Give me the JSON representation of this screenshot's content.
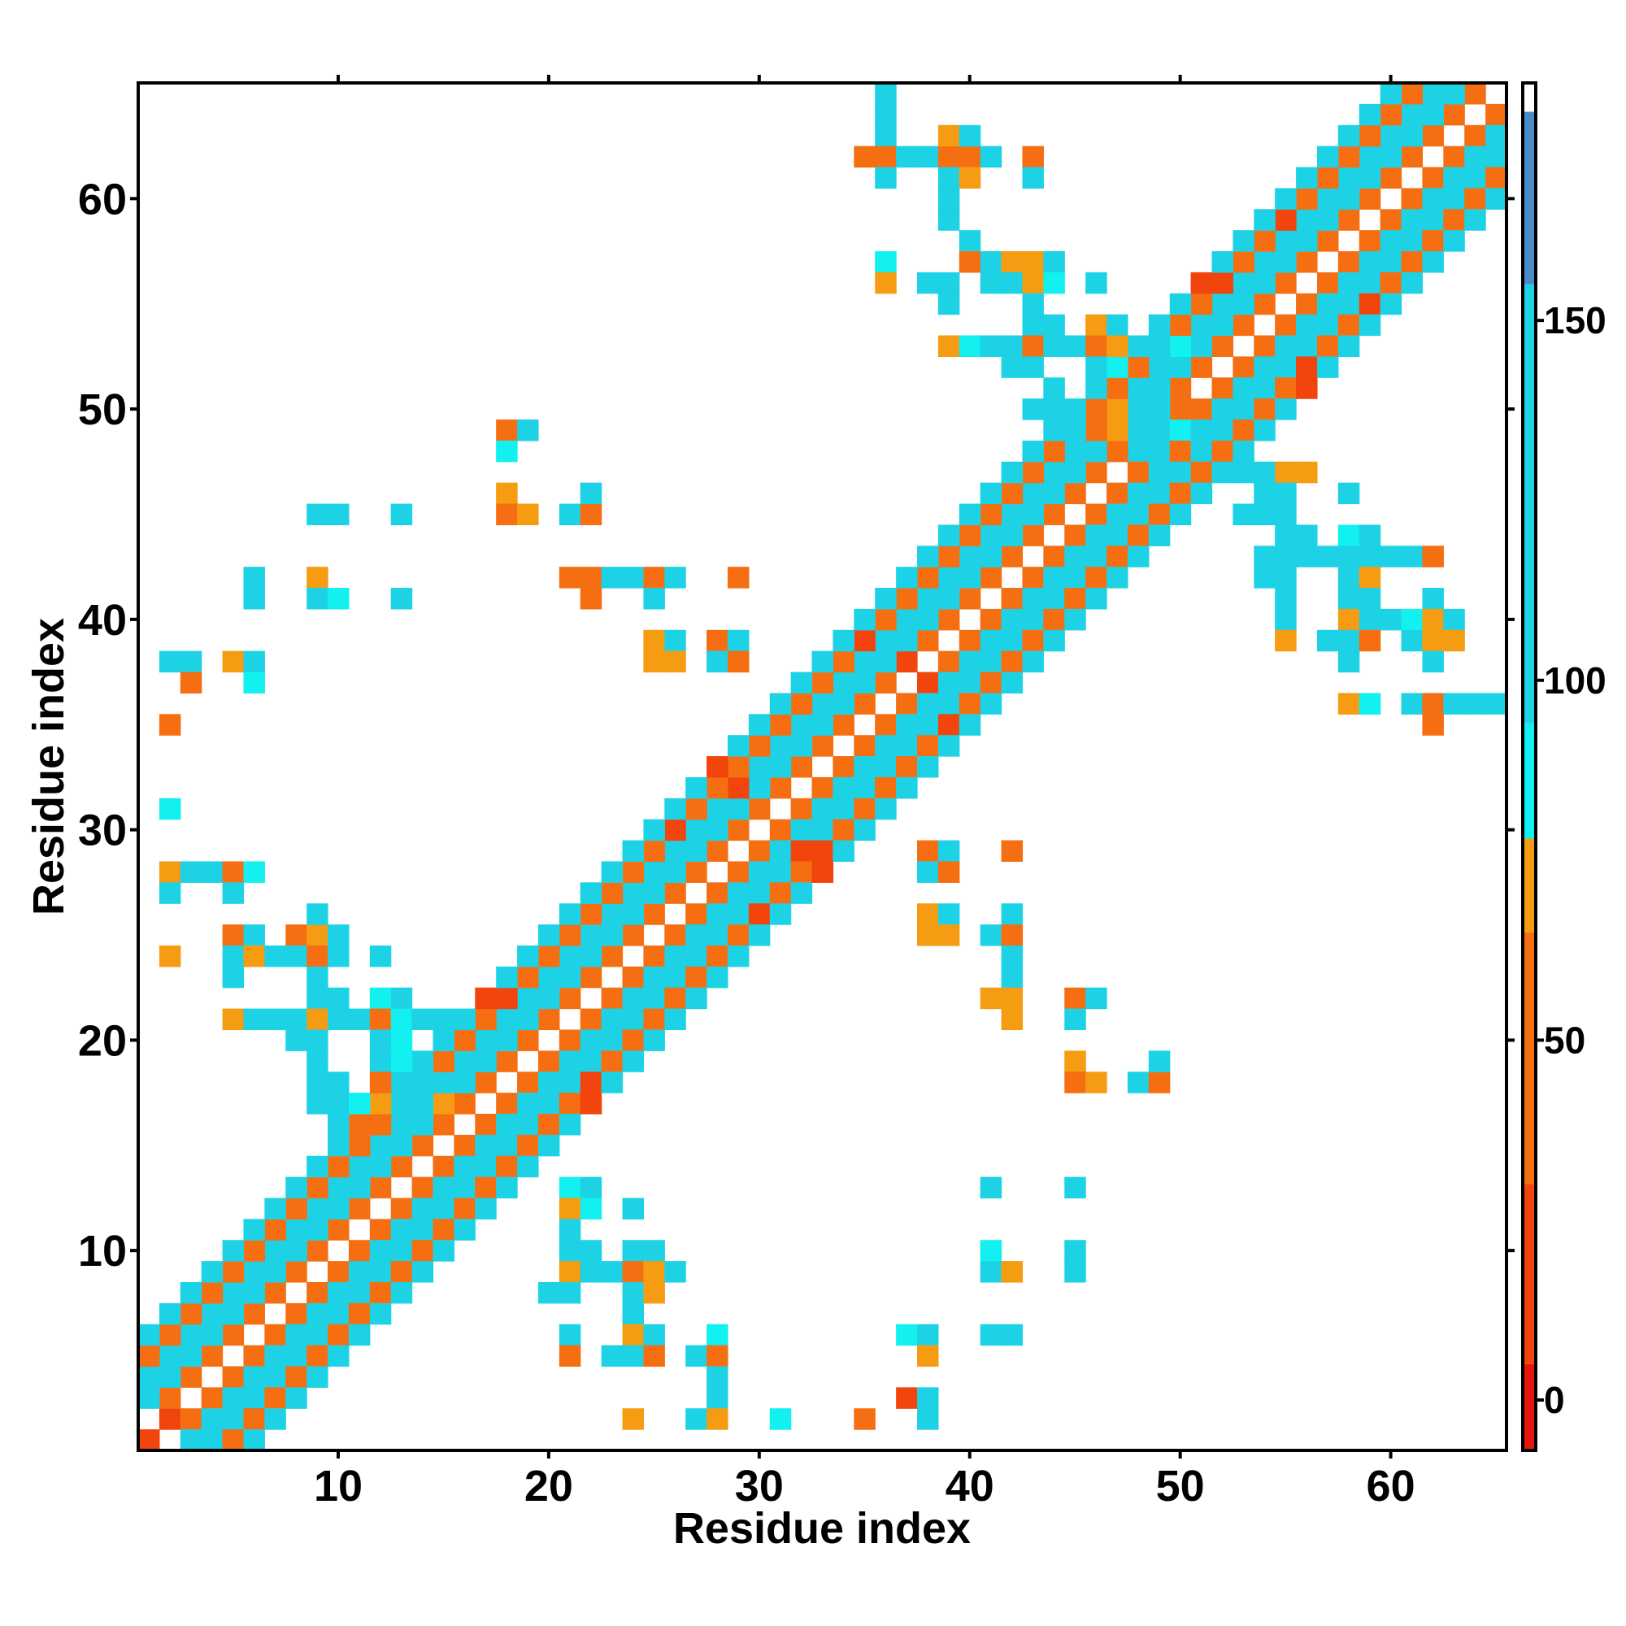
{
  "chart_data": {
    "type": "heatmap",
    "xlabel": "Residue index",
    "ylabel": "Residue index",
    "xlim": [
      0.5,
      65.5
    ],
    "ylim": [
      0.5,
      65.5
    ],
    "x_ticks": [
      10,
      20,
      30,
      40,
      50,
      60
    ],
    "y_ticks": [
      10,
      20,
      30,
      40,
      50,
      60
    ],
    "grid": false,
    "colorbar": {
      "range": [
        -7,
        183
      ],
      "ticks": [
        0,
        50,
        100,
        150
      ],
      "segments": [
        {
          "from": -7,
          "to": 5,
          "color": "#e8150d"
        },
        {
          "from": 5,
          "to": 30,
          "color": "#f2440d"
        },
        {
          "from": 30,
          "to": 65,
          "color": "#f56e12"
        },
        {
          "from": 65,
          "to": 78,
          "color": "#f59c12"
        },
        {
          "from": 78,
          "to": 94,
          "color": "#12f0f0"
        },
        {
          "from": 94,
          "to": 155,
          "color": "#1ed2e6"
        },
        {
          "from": 155,
          "to": 179,
          "color": "#4a8cc8"
        },
        {
          "from": 179,
          "to": 183,
          "color": "#ffffff"
        }
      ]
    },
    "note_values": "cell values in colorbar units",
    "diagonal_bands": [
      {
        "offset": 0,
        "value": 180
      },
      {
        "offset": 1,
        "value": 40
      },
      {
        "offset": 2,
        "value": 100
      },
      {
        "offset": 3,
        "value": 120
      },
      {
        "offset": 4,
        "value": 45
      },
      {
        "offset": 5,
        "value": 110
      }
    ],
    "cells": [
      [
        1,
        1,
        5
      ],
      [
        2,
        2,
        5
      ],
      [
        1,
        2,
        180
      ],
      [
        2,
        1,
        180
      ],
      [
        17,
        22,
        8
      ],
      [
        18,
        22,
        8
      ],
      [
        22,
        17,
        8
      ],
      [
        22,
        18,
        8
      ],
      [
        26,
        30,
        12
      ],
      [
        30,
        26,
        10
      ],
      [
        28,
        33,
        8
      ],
      [
        33,
        28,
        8
      ],
      [
        32,
        29,
        10
      ],
      [
        33,
        29,
        10
      ],
      [
        29,
        32,
        12
      ],
      [
        38,
        37,
        12
      ],
      [
        37,
        38,
        8
      ],
      [
        35,
        39,
        10
      ],
      [
        39,
        35,
        12
      ],
      [
        51,
        56,
        8
      ],
      [
        52,
        56,
        8
      ],
      [
        56,
        51,
        10
      ],
      [
        56,
        52,
        10
      ],
      [
        55,
        59,
        12
      ],
      [
        59,
        55,
        10
      ],
      [
        36,
        65,
        110
      ],
      [
        36,
        64,
        150
      ],
      [
        36,
        63,
        110
      ],
      [
        36,
        62,
        40
      ],
      [
        35,
        62,
        40
      ],
      [
        37,
        62,
        110
      ],
      [
        38,
        62,
        110
      ],
      [
        39,
        62,
        40
      ],
      [
        40,
        62,
        40
      ],
      [
        41,
        62,
        150
      ],
      [
        39,
        63,
        70
      ],
      [
        40,
        63,
        110
      ],
      [
        39,
        61,
        110
      ],
      [
        40,
        61,
        70
      ],
      [
        43,
        62,
        40
      ],
      [
        36,
        61,
        110
      ],
      [
        39,
        60,
        110
      ],
      [
        43,
        61,
        110
      ],
      [
        39,
        59,
        150
      ],
      [
        40,
        58,
        150
      ],
      [
        40,
        57,
        40
      ],
      [
        41,
        57,
        110
      ],
      [
        42,
        57,
        70
      ],
      [
        43,
        57,
        70
      ],
      [
        44,
        57,
        150
      ],
      [
        36,
        57,
        90
      ],
      [
        36,
        56,
        70
      ],
      [
        38,
        56,
        150
      ],
      [
        39,
        56,
        110
      ],
      [
        41,
        56,
        110
      ],
      [
        42,
        56,
        110
      ],
      [
        43,
        56,
        70
      ],
      [
        44,
        56,
        90
      ],
      [
        46,
        56,
        110
      ],
      [
        39,
        55,
        150
      ],
      [
        43,
        55,
        110
      ],
      [
        43,
        54,
        110
      ],
      [
        44,
        54,
        150
      ],
      [
        46,
        54,
        70
      ],
      [
        47,
        54,
        110
      ],
      [
        39,
        53,
        70
      ],
      [
        40,
        53,
        90
      ],
      [
        41,
        53,
        110
      ],
      [
        42,
        53,
        150
      ],
      [
        43,
        53,
        40
      ],
      [
        44,
        53,
        110
      ],
      [
        45,
        53,
        110
      ],
      [
        46,
        53,
        40
      ],
      [
        47,
        53,
        70
      ],
      [
        48,
        53,
        150
      ],
      [
        49,
        53,
        110
      ],
      [
        50,
        53,
        90
      ],
      [
        42,
        52,
        150
      ],
      [
        43,
        52,
        110
      ],
      [
        46,
        52,
        110
      ],
      [
        47,
        52,
        90
      ],
      [
        44,
        51,
        150
      ],
      [
        46,
        51,
        110
      ],
      [
        43,
        50,
        110
      ],
      [
        44,
        50,
        150
      ],
      [
        45,
        50,
        110
      ],
      [
        46,
        50,
        40
      ],
      [
        47,
        50,
        70
      ],
      [
        48,
        50,
        110
      ],
      [
        49,
        50,
        150
      ],
      [
        50,
        50,
        40
      ],
      [
        44,
        49,
        110
      ],
      [
        45,
        49,
        150
      ],
      [
        46,
        49,
        40
      ],
      [
        47,
        49,
        70
      ],
      [
        48,
        49,
        110
      ],
      [
        49,
        49,
        150
      ],
      [
        50,
        49,
        90
      ],
      [
        45,
        48,
        110
      ],
      [
        46,
        48,
        110
      ],
      [
        47,
        48,
        40
      ],
      [
        48,
        48,
        150
      ],
      [
        49,
        48,
        110
      ],
      [
        50,
        48,
        40
      ],
      [
        18,
        49,
        40
      ],
      [
        19,
        49,
        110
      ],
      [
        18,
        48,
        90
      ],
      [
        18,
        46,
        70
      ],
      [
        18,
        45,
        40
      ],
      [
        19,
        45,
        70
      ],
      [
        21,
        45,
        110
      ],
      [
        22,
        45,
        40
      ],
      [
        22,
        46,
        110
      ],
      [
        9,
        45,
        110
      ],
      [
        10,
        45,
        110
      ],
      [
        13,
        45,
        110
      ],
      [
        6,
        42,
        110
      ],
      [
        6,
        41,
        110
      ],
      [
        9,
        42,
        70
      ],
      [
        9,
        41,
        110
      ],
      [
        10,
        41,
        90
      ],
      [
        13,
        41,
        110
      ],
      [
        21,
        42,
        40
      ],
      [
        22,
        42,
        40
      ],
      [
        22,
        41,
        40
      ],
      [
        23,
        42,
        110
      ],
      [
        24,
        42,
        150
      ],
      [
        25,
        42,
        40
      ],
      [
        26,
        42,
        110
      ],
      [
        25,
        41,
        110
      ],
      [
        29,
        42,
        40
      ],
      [
        25,
        39,
        70
      ],
      [
        26,
        39,
        150
      ],
      [
        25,
        38,
        70
      ],
      [
        26,
        38,
        70
      ],
      [
        28,
        39,
        40
      ],
      [
        29,
        39,
        110
      ],
      [
        28,
        38,
        110
      ],
      [
        29,
        38,
        40
      ],
      [
        2,
        38,
        110
      ],
      [
        3,
        38,
        110
      ],
      [
        3,
        37,
        40
      ],
      [
        5,
        38,
        70
      ],
      [
        6,
        38,
        110
      ],
      [
        6,
        37,
        90
      ],
      [
        2,
        35,
        40
      ],
      [
        2,
        31,
        90
      ],
      [
        2,
        28,
        70
      ],
      [
        3,
        28,
        110
      ],
      [
        4,
        28,
        110
      ],
      [
        5,
        28,
        40
      ],
      [
        6,
        28,
        90
      ],
      [
        2,
        27,
        110
      ],
      [
        5,
        27,
        110
      ],
      [
        5,
        25,
        40
      ],
      [
        6,
        25,
        110
      ],
      [
        8,
        25,
        40
      ],
      [
        9,
        25,
        70
      ],
      [
        10,
        25,
        110
      ],
      [
        9,
        26,
        150
      ],
      [
        2,
        24,
        70
      ],
      [
        5,
        24,
        110
      ],
      [
        6,
        24,
        70
      ],
      [
        7,
        24,
        110
      ],
      [
        8,
        24,
        110
      ],
      [
        9,
        24,
        40
      ],
      [
        10,
        24,
        110
      ],
      [
        12,
        24,
        110
      ],
      [
        5,
        23,
        150
      ],
      [
        9,
        23,
        110
      ],
      [
        9,
        22,
        110
      ],
      [
        10,
        22,
        150
      ],
      [
        12,
        22,
        90
      ],
      [
        13,
        22,
        150
      ],
      [
        5,
        21,
        70
      ],
      [
        6,
        21,
        110
      ],
      [
        7,
        21,
        150
      ],
      [
        8,
        21,
        110
      ],
      [
        9,
        21,
        70
      ],
      [
        10,
        21,
        110
      ],
      [
        11,
        21,
        110
      ],
      [
        12,
        21,
        40
      ],
      [
        13,
        21,
        90
      ],
      [
        14,
        21,
        150
      ],
      [
        15,
        21,
        110
      ],
      [
        8,
        20,
        150
      ],
      [
        9,
        20,
        110
      ],
      [
        12,
        20,
        110
      ],
      [
        13,
        20,
        90
      ],
      [
        9,
        19,
        150
      ],
      [
        12,
        19,
        110
      ],
      [
        13,
        19,
        90
      ],
      [
        9,
        18,
        110
      ],
      [
        10,
        18,
        150
      ],
      [
        12,
        18,
        40
      ],
      [
        13,
        18,
        150
      ],
      [
        14,
        18,
        110
      ],
      [
        9,
        17,
        110
      ],
      [
        10,
        17,
        150
      ],
      [
        11,
        17,
        90
      ],
      [
        12,
        17,
        70
      ],
      [
        13,
        17,
        150
      ],
      [
        14,
        17,
        110
      ],
      [
        15,
        17,
        70
      ],
      [
        10,
        16,
        150
      ],
      [
        11,
        16,
        40
      ],
      [
        12,
        16,
        40
      ],
      [
        13,
        16,
        110
      ],
      [
        14,
        16,
        110
      ],
      [
        21,
        13,
        90
      ],
      [
        22,
        13,
        150
      ],
      [
        21,
        12,
        70
      ],
      [
        22,
        12,
        90
      ],
      [
        24,
        12,
        110
      ],
      [
        21,
        11,
        110
      ],
      [
        21,
        10,
        110
      ],
      [
        22,
        10,
        150
      ],
      [
        24,
        10,
        110
      ],
      [
        25,
        10,
        150
      ],
      [
        21,
        9,
        70
      ],
      [
        22,
        9,
        110
      ],
      [
        23,
        9,
        110
      ],
      [
        24,
        9,
        40
      ],
      [
        25,
        9,
        70
      ],
      [
        26,
        9,
        150
      ],
      [
        20,
        8,
        150
      ],
      [
        21,
        8,
        110
      ],
      [
        24,
        8,
        110
      ],
      [
        25,
        8,
        70
      ],
      [
        24,
        7,
        110
      ],
      [
        21,
        6,
        110
      ],
      [
        24,
        6,
        70
      ],
      [
        25,
        6,
        110
      ],
      [
        28,
        6,
        90
      ],
      [
        21,
        5,
        40
      ],
      [
        23,
        5,
        150
      ],
      [
        24,
        5,
        110
      ],
      [
        25,
        5,
        40
      ],
      [
        27,
        5,
        150
      ],
      [
        28,
        5,
        40
      ],
      [
        28,
        4,
        110
      ],
      [
        28,
        3,
        110
      ],
      [
        24,
        2,
        70
      ],
      [
        27,
        2,
        110
      ],
      [
        28,
        2,
        70
      ],
      [
        31,
        2,
        90
      ],
      [
        35,
        2,
        40
      ],
      [
        38,
        2,
        110
      ],
      [
        37,
        3,
        8
      ],
      [
        38,
        3,
        110
      ],
      [
        37,
        6,
        90
      ],
      [
        38,
        6,
        110
      ],
      [
        38,
        5,
        70
      ],
      [
        41,
        6,
        110
      ],
      [
        42,
        6,
        110
      ],
      [
        38,
        29,
        40
      ],
      [
        39,
        29,
        110
      ],
      [
        42,
        29,
        40
      ],
      [
        38,
        28,
        110
      ],
      [
        39,
        28,
        40
      ],
      [
        38,
        26,
        70
      ],
      [
        39,
        26,
        150
      ],
      [
        42,
        26,
        110
      ],
      [
        38,
        25,
        70
      ],
      [
        39,
        25,
        70
      ],
      [
        41,
        25,
        110
      ],
      [
        42,
        25,
        40
      ],
      [
        42,
        24,
        110
      ],
      [
        42,
        23,
        150
      ],
      [
        41,
        22,
        70
      ],
      [
        42,
        22,
        70
      ],
      [
        42,
        21,
        70
      ],
      [
        45,
        22,
        40
      ],
      [
        46,
        22,
        110
      ],
      [
        45,
        21,
        110
      ],
      [
        45,
        19,
        70
      ],
      [
        45,
        18,
        40
      ],
      [
        46,
        18,
        70
      ],
      [
        48,
        18,
        110
      ],
      [
        49,
        18,
        40
      ],
      [
        49,
        19,
        110
      ],
      [
        41,
        13,
        110
      ],
      [
        45,
        13,
        110
      ],
      [
        41,
        10,
        90
      ],
      [
        45,
        10,
        110
      ],
      [
        41,
        9,
        110
      ],
      [
        42,
        9,
        70
      ],
      [
        45,
        9,
        110
      ],
      [
        52,
        47,
        150
      ],
      [
        53,
        47,
        150
      ],
      [
        54,
        47,
        110
      ],
      [
        55,
        47,
        70
      ],
      [
        56,
        47,
        70
      ],
      [
        58,
        46,
        110
      ],
      [
        54,
        46,
        110
      ],
      [
        55,
        46,
        150
      ],
      [
        53,
        45,
        110
      ],
      [
        54,
        45,
        110
      ],
      [
        55,
        45,
        110
      ],
      [
        55,
        44,
        150
      ],
      [
        56,
        44,
        110
      ],
      [
        58,
        44,
        90
      ],
      [
        59,
        44,
        110
      ],
      [
        54,
        43,
        150
      ],
      [
        55,
        43,
        110
      ],
      [
        56,
        43,
        110
      ],
      [
        57,
        43,
        110
      ],
      [
        58,
        43,
        150
      ],
      [
        59,
        43,
        110
      ],
      [
        60,
        43,
        110
      ],
      [
        61,
        43,
        110
      ],
      [
        62,
        43,
        40
      ],
      [
        54,
        42,
        150
      ],
      [
        55,
        42,
        110
      ],
      [
        58,
        42,
        150
      ],
      [
        59,
        42,
        70
      ],
      [
        55,
        41,
        150
      ],
      [
        58,
        41,
        110
      ],
      [
        59,
        41,
        150
      ],
      [
        62,
        41,
        150
      ],
      [
        55,
        40,
        110
      ],
      [
        58,
        40,
        70
      ],
      [
        59,
        40,
        150
      ],
      [
        60,
        40,
        110
      ],
      [
        61,
        40,
        90
      ],
      [
        62,
        40,
        70
      ],
      [
        63,
        40,
        110
      ],
      [
        55,
        39,
        70
      ],
      [
        57,
        39,
        150
      ],
      [
        58,
        39,
        110
      ],
      [
        59,
        39,
        40
      ],
      [
        61,
        39,
        110
      ],
      [
        62,
        39,
        70
      ],
      [
        63,
        39,
        70
      ],
      [
        58,
        38,
        150
      ],
      [
        62,
        38,
        110
      ],
      [
        58,
        36,
        70
      ],
      [
        59,
        36,
        90
      ],
      [
        61,
        36,
        110
      ],
      [
        62,
        36,
        40
      ],
      [
        63,
        36,
        110
      ],
      [
        64,
        36,
        150
      ],
      [
        65,
        36,
        110
      ],
      [
        62,
        35,
        40
      ]
    ]
  }
}
